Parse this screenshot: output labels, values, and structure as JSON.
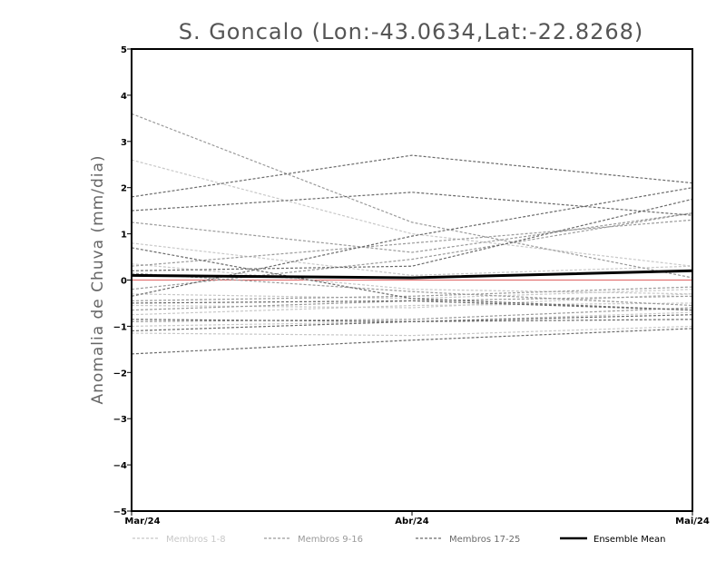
{
  "chart_data": {
    "type": "line",
    "title": "S. Goncalo (Lon:-43.0634,Lat:-22.8268)",
    "xlabel": "",
    "ylabel": "Anomalia de Chuva (mm/dia)",
    "categories": [
      "Mar/24",
      "Abr/24",
      "Mai/24"
    ],
    "ylim": [
      -5,
      5
    ],
    "yticks": [
      "5",
      "4",
      "3",
      "2",
      "1",
      "0",
      "−1",
      "−2",
      "−3",
      "−4",
      "−5"
    ],
    "ytick_values": [
      5,
      4,
      3,
      2,
      1,
      0,
      -1,
      -2,
      -3,
      -4,
      -5
    ],
    "zero_line_color": "#e06060",
    "groups": [
      {
        "name": "Membros 1-8",
        "color": "#c8c8c8",
        "dash": "3,2"
      },
      {
        "name": "Membros 9-16",
        "color": "#9a9a9a",
        "dash": "3,2"
      },
      {
        "name": "Membros 17-25",
        "color": "#6a6a6a",
        "dash": "3,2"
      },
      {
        "name": "Ensemble Mean",
        "color": "#000000",
        "dash": "none"
      }
    ],
    "series": [
      {
        "group": 0,
        "values": [
          2.6,
          1.0,
          0.3
        ]
      },
      {
        "group": 0,
        "values": [
          0.8,
          0.1,
          0.3
        ]
      },
      {
        "group": 0,
        "values": [
          0.35,
          -0.2,
          -0.3
        ]
      },
      {
        "group": 0,
        "values": [
          -0.3,
          -0.4,
          -0.2
        ]
      },
      {
        "group": 0,
        "values": [
          -0.55,
          -0.6,
          -0.3
        ]
      },
      {
        "group": 0,
        "values": [
          -0.75,
          -0.55,
          -0.5
        ]
      },
      {
        "group": 0,
        "values": [
          -1.0,
          -0.9,
          -0.7
        ]
      },
      {
        "group": 0,
        "values": [
          -1.15,
          -1.2,
          -1.0
        ]
      },
      {
        "group": 1,
        "values": [
          3.6,
          1.25,
          0.05
        ]
      },
      {
        "group": 1,
        "values": [
          1.25,
          0.6,
          1.45
        ]
      },
      {
        "group": 1,
        "values": [
          0.3,
          0.8,
          1.3
        ]
      },
      {
        "group": 1,
        "values": [
          0.15,
          -0.25,
          -0.55
        ]
      },
      {
        "group": 1,
        "values": [
          -0.2,
          0.45,
          1.45
        ]
      },
      {
        "group": 1,
        "values": [
          -0.45,
          -0.35,
          -0.15
        ]
      },
      {
        "group": 1,
        "values": [
          -0.65,
          -0.45,
          -0.35
        ]
      },
      {
        "group": 1,
        "values": [
          -0.9,
          -0.85,
          -0.6
        ]
      },
      {
        "group": 2,
        "values": [
          1.8,
          2.7,
          2.1
        ]
      },
      {
        "group": 2,
        "values": [
          1.5,
          1.9,
          1.4
        ]
      },
      {
        "group": 2,
        "values": [
          0.7,
          -0.4,
          -0.65
        ]
      },
      {
        "group": 2,
        "values": [
          0.2,
          0.3,
          1.75
        ]
      },
      {
        "group": 2,
        "values": [
          -0.35,
          0.95,
          2.0
        ]
      },
      {
        "group": 2,
        "values": [
          -0.5,
          -0.45,
          -0.65
        ]
      },
      {
        "group": 2,
        "values": [
          -0.85,
          -0.9,
          -0.75
        ]
      },
      {
        "group": 2,
        "values": [
          -1.1,
          -0.9,
          -0.85
        ]
      },
      {
        "group": 2,
        "values": [
          -1.6,
          -1.3,
          -1.05
        ]
      },
      {
        "group": 3,
        "values": [
          0.1,
          0.05,
          0.2
        ]
      }
    ]
  }
}
